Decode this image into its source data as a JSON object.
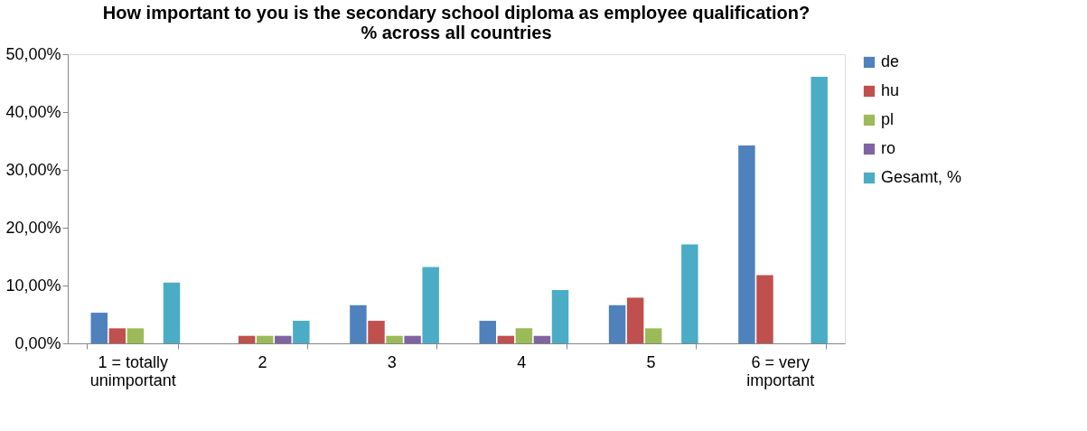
{
  "chart_data": {
    "type": "bar",
    "title": [
      "How important to you is the secondary school diploma as employee qualification?",
      "% across all countries"
    ],
    "categories": [
      "1 = totally unimportant",
      "2",
      "3",
      "4",
      "5",
      "6 = very important"
    ],
    "series": [
      {
        "name": "de",
        "color": "#4f81bd",
        "values": [
          5.3,
          0,
          6.6,
          3.9,
          6.6,
          34.2
        ]
      },
      {
        "name": "hu",
        "color": "#c0504d",
        "values": [
          2.6,
          1.3,
          3.9,
          1.3,
          7.9,
          11.8
        ]
      },
      {
        "name": "pl",
        "color": "#9bbb59",
        "values": [
          2.6,
          1.3,
          1.3,
          2.6,
          2.6,
          0
        ]
      },
      {
        "name": "ro",
        "color": "#8064a2",
        "values": [
          0,
          1.3,
          1.3,
          1.3,
          0,
          0
        ]
      },
      {
        "name": "Gesamt, %",
        "color": "#4bacc6",
        "values": [
          10.5,
          3.9,
          13.2,
          9.2,
          17.1,
          46.1
        ]
      }
    ],
    "ylim": [
      0,
      50
    ],
    "yticks": [
      {
        "value": 0,
        "label": "0,00%"
      },
      {
        "value": 10,
        "label": "10,00%"
      },
      {
        "value": 20,
        "label": "20,00%"
      },
      {
        "value": 30,
        "label": "30,00%"
      },
      {
        "value": 40,
        "label": "40,00%"
      },
      {
        "value": 50,
        "label": "50,00%"
      }
    ],
    "grid": false,
    "legend": "right"
  }
}
